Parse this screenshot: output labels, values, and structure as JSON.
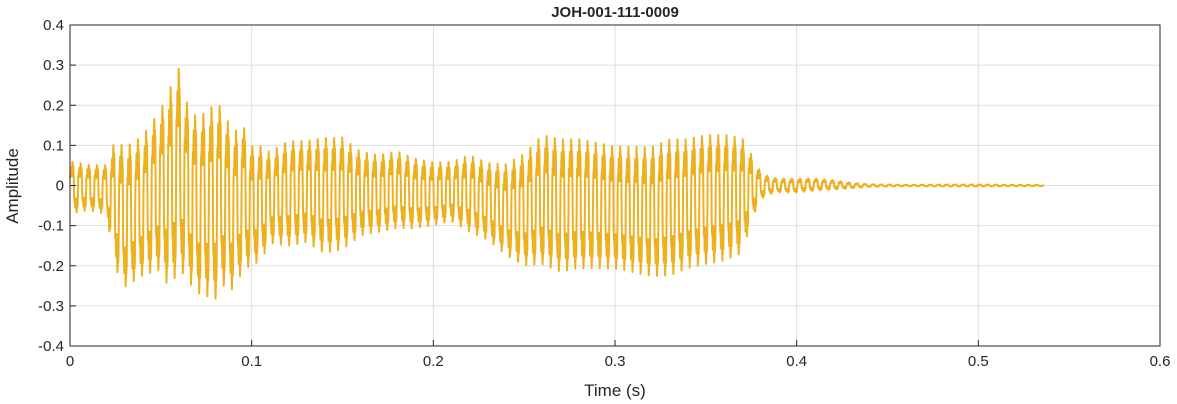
{
  "chart_data": {
    "type": "line",
    "title": "JOH-001-111-0009",
    "xlabel": "Time (s)",
    "ylabel": "Amplitude",
    "xlim": [
      0,
      0.6
    ],
    "ylim": [
      -0.4,
      0.4
    ],
    "xticks": [
      0,
      0.1,
      0.2,
      0.3,
      0.4,
      0.5,
      0.6
    ],
    "xtick_labels": [
      "0",
      "0.1",
      "0.2",
      "0.3",
      "0.4",
      "0.5",
      "0.6"
    ],
    "yticks": [
      -0.4,
      -0.3,
      -0.2,
      -0.1,
      0,
      0.1,
      0.2,
      0.3,
      0.4
    ],
    "ytick_labels": [
      "-0.4",
      "-0.3",
      "-0.2",
      "-0.1",
      "0",
      "0.1",
      "0.2",
      "0.3",
      "0.4"
    ],
    "grid": true,
    "series": [
      {
        "color": "#EDB120",
        "x": [
          0.0,
          0.01,
          0.02,
          0.025,
          0.03,
          0.04,
          0.05,
          0.055,
          0.06,
          0.063,
          0.07,
          0.08,
          0.083,
          0.09,
          0.095,
          0.1,
          0.105,
          0.11,
          0.12,
          0.13,
          0.14,
          0.15,
          0.16,
          0.17,
          0.18,
          0.19,
          0.2,
          0.21,
          0.22,
          0.23,
          0.24,
          0.25,
          0.26,
          0.27,
          0.28,
          0.29,
          0.3,
          0.31,
          0.32,
          0.33,
          0.34,
          0.35,
          0.36,
          0.37,
          0.375,
          0.38,
          0.385,
          0.39,
          0.4,
          0.41,
          0.42,
          0.43,
          0.44,
          0.45,
          0.46,
          0.48,
          0.5,
          0.52,
          0.536
        ],
        "upper": [
          0.07,
          0.06,
          0.06,
          0.14,
          0.12,
          0.15,
          0.22,
          0.28,
          0.33,
          0.25,
          0.2,
          0.24,
          0.23,
          0.16,
          0.18,
          0.12,
          0.12,
          0.1,
          0.13,
          0.13,
          0.14,
          0.14,
          0.1,
          0.09,
          0.1,
          0.08,
          0.07,
          0.07,
          0.09,
          0.07,
          0.07,
          0.1,
          0.15,
          0.14,
          0.14,
          0.13,
          0.12,
          0.12,
          0.12,
          0.14,
          0.14,
          0.15,
          0.15,
          0.14,
          0.09,
          0.04,
          0.025,
          0.02,
          0.02,
          0.02,
          0.015,
          0.008,
          0.004,
          0.003,
          0.002,
          0.003,
          0.003,
          0.002,
          0.002
        ],
        "lower": [
          -0.08,
          -0.07,
          -0.08,
          -0.23,
          -0.28,
          -0.25,
          -0.24,
          -0.3,
          -0.24,
          -0.26,
          -0.3,
          -0.32,
          -0.28,
          -0.29,
          -0.24,
          -0.22,
          -0.21,
          -0.16,
          -0.17,
          -0.16,
          -0.19,
          -0.18,
          -0.14,
          -0.13,
          -0.12,
          -0.12,
          -0.11,
          -0.1,
          -0.13,
          -0.15,
          -0.19,
          -0.22,
          -0.22,
          -0.24,
          -0.23,
          -0.23,
          -0.23,
          -0.24,
          -0.25,
          -0.25,
          -0.23,
          -0.22,
          -0.21,
          -0.19,
          -0.1,
          -0.04,
          -0.025,
          -0.02,
          -0.02,
          -0.015,
          -0.012,
          -0.008,
          -0.004,
          -0.003,
          -0.002,
          -0.003,
          -0.003,
          -0.002,
          -0.002
        ]
      }
    ]
  }
}
